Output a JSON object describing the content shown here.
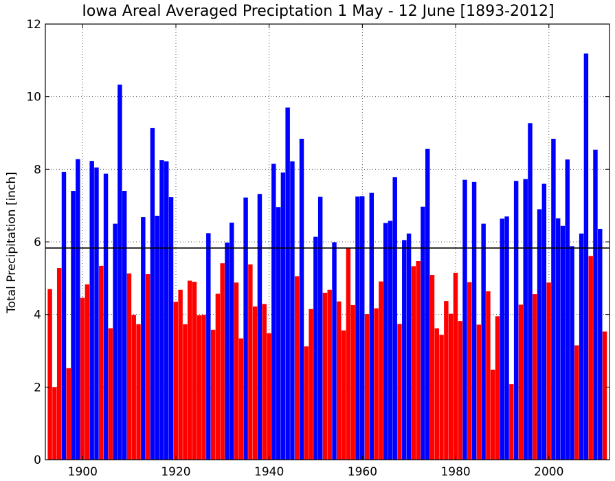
{
  "chart_data": {
    "type": "bar",
    "title": "Iowa Areal Averaged Preciptation 1 May - 12 June [1893-2012]",
    "xlabel": "",
    "ylabel": "Total Precipitation [inch]",
    "xlim": [
      1892,
      2013
    ],
    "ylim": [
      0,
      12
    ],
    "x_ticks": [
      1900,
      1920,
      1940,
      1960,
      1980,
      2000
    ],
    "y_ticks": [
      0,
      2,
      4,
      6,
      8,
      10,
      12
    ],
    "grid": true,
    "average_line": 5.83,
    "colors": {
      "above": "#0000ff",
      "below": "#ff0000",
      "average_line": "#000000"
    },
    "years": [
      1893,
      1894,
      1895,
      1896,
      1897,
      1898,
      1899,
      1900,
      1901,
      1902,
      1903,
      1904,
      1905,
      1906,
      1907,
      1908,
      1909,
      1910,
      1911,
      1912,
      1913,
      1914,
      1915,
      1916,
      1917,
      1918,
      1919,
      1920,
      1921,
      1922,
      1923,
      1924,
      1925,
      1926,
      1927,
      1928,
      1929,
      1930,
      1931,
      1932,
      1933,
      1934,
      1935,
      1936,
      1937,
      1938,
      1939,
      1940,
      1941,
      1942,
      1943,
      1944,
      1945,
      1946,
      1947,
      1948,
      1949,
      1950,
      1951,
      1952,
      1953,
      1954,
      1955,
      1956,
      1957,
      1958,
      1959,
      1960,
      1961,
      1962,
      1963,
      1964,
      1965,
      1966,
      1967,
      1968,
      1969,
      1970,
      1971,
      1972,
      1973,
      1974,
      1975,
      1976,
      1977,
      1978,
      1979,
      1980,
      1981,
      1982,
      1983,
      1984,
      1985,
      1986,
      1987,
      1988,
      1989,
      1990,
      1991,
      1992,
      1993,
      1994,
      1995,
      1996,
      1997,
      1998,
      1999,
      2000,
      2001,
      2002,
      2003,
      2004,
      2005,
      2006,
      2007,
      2008,
      2009,
      2010,
      2011,
      2012
    ],
    "values": [
      4.7,
      2.0,
      5.28,
      7.93,
      2.52,
      7.4,
      8.28,
      4.46,
      4.83,
      8.23,
      8.05,
      5.34,
      7.88,
      3.62,
      6.5,
      10.33,
      7.4,
      5.13,
      3.99,
      3.73,
      6.68,
      5.11,
      9.14,
      6.72,
      8.25,
      8.22,
      7.23,
      4.35,
      4.68,
      3.73,
      4.93,
      4.9,
      3.98,
      3.99,
      6.24,
      3.58,
      4.57,
      5.41,
      5.98,
      6.53,
      4.88,
      3.34,
      7.22,
      5.38,
      4.22,
      7.32,
      4.29,
      3.48,
      8.15,
      6.96,
      7.91,
      9.7,
      8.22,
      5.05,
      8.84,
      3.12,
      4.15,
      6.14,
      7.24,
      4.6,
      4.68,
      5.99,
      4.36,
      3.56,
      5.82,
      4.26,
      7.25,
      7.26,
      4.01,
      7.35,
      4.17,
      4.91,
      6.52,
      6.58,
      7.78,
      3.74,
      6.05,
      6.23,
      5.33,
      5.47,
      6.97,
      8.56,
      5.09,
      3.62,
      3.44,
      4.37,
      4.02,
      5.15,
      3.82,
      7.71,
      4.89,
      7.65,
      3.72,
      6.5,
      4.64,
      2.48,
      3.95,
      6.64,
      6.7,
      2.08,
      7.68,
      4.27,
      7.73,
      9.27,
      4.56,
      6.9,
      7.6,
      4.88,
      8.84,
      6.65,
      6.44,
      8.27,
      5.88,
      3.15,
      6.23,
      11.19,
      5.61,
      8.54,
      6.36,
      3.53
    ]
  }
}
